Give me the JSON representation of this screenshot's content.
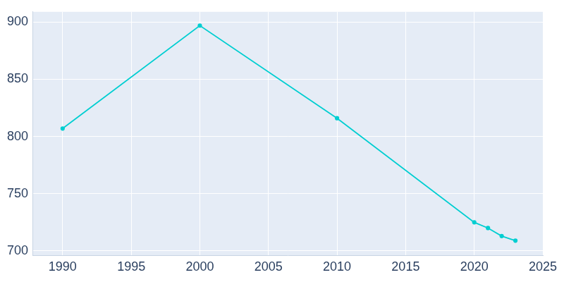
{
  "chart_data": {
    "type": "line",
    "x": [
      1990,
      2000,
      2010,
      2020,
      2021,
      2022,
      2023
    ],
    "values": [
      807,
      897,
      816,
      725,
      720,
      713,
      709
    ],
    "color": "#00ced1",
    "marker": "circle",
    "xlim": [
      1987.8,
      2025
    ],
    "xticks": [
      1990,
      1995,
      2000,
      2005,
      2010,
      2015,
      2020,
      2025
    ],
    "ylim": [
      696,
      909
    ],
    "yticks": [
      700,
      750,
      800,
      850,
      900
    ],
    "grid": true
  }
}
